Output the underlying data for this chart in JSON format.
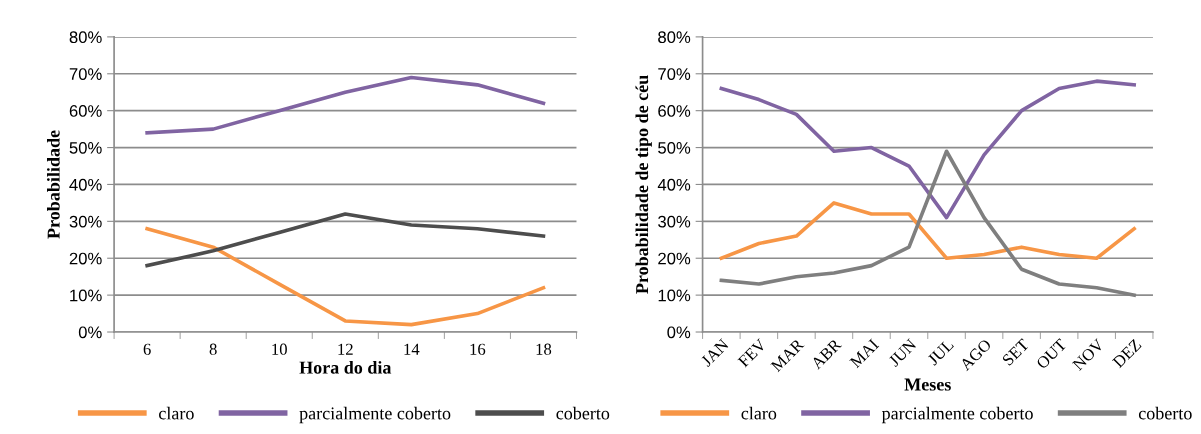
{
  "chart_data": [
    {
      "type": "line",
      "xlabel": "Hora do dia",
      "ylabel": "Probabilidade",
      "categories": [
        "6",
        "8",
        "10",
        "12",
        "14",
        "16",
        "18"
      ],
      "series": [
        {
          "name": "claro",
          "color": "#f79646",
          "values": [
            28,
            23,
            13,
            3,
            2,
            5,
            12
          ]
        },
        {
          "name": "parcialmente coberto",
          "color": "#8064a2",
          "values": [
            54,
            55,
            60,
            65,
            69,
            67,
            62
          ]
        },
        {
          "name": "coberto",
          "color": "#4d4d4d",
          "values": [
            18,
            22,
            27,
            32,
            29,
            28,
            26
          ]
        }
      ],
      "ylim": [
        0,
        80
      ],
      "yticks": [
        {
          "value": 0,
          "label": "0%"
        },
        {
          "value": 10,
          "label": "10%"
        },
        {
          "value": 20,
          "label": "20%"
        },
        {
          "value": 30,
          "label": "30%"
        },
        {
          "value": 40,
          "label": "40%"
        },
        {
          "value": 50,
          "label": "50%"
        },
        {
          "value": 60,
          "label": "60%"
        },
        {
          "value": 70,
          "label": "70%"
        },
        {
          "value": 80,
          "label": "80%"
        }
      ],
      "grid": "y",
      "legend": "bottom",
      "marker": "none",
      "line_style": "solid"
    },
    {
      "type": "line",
      "xlabel": "Meses",
      "ylabel": "Probabilidade de tipo de céu",
      "categories": [
        "JAN",
        "FEV",
        "MAR",
        "ABR",
        "MAI",
        "JUN",
        "JUL",
        "AGO",
        "SET",
        "OUT",
        "NOV",
        "DEZ"
      ],
      "series": [
        {
          "name": "claro",
          "color": "#f79646",
          "values": [
            20,
            24,
            26,
            35,
            32,
            32,
            20,
            21,
            23,
            21,
            20,
            28
          ]
        },
        {
          "name": "parcialmente coberto",
          "color": "#8064a2",
          "values": [
            66,
            63,
            59,
            49,
            50,
            45,
            31,
            48,
            60,
            66,
            68,
            67
          ]
        },
        {
          "name": "coberto",
          "color": "#7f7f7f",
          "values": [
            14,
            13,
            15,
            16,
            18,
            23,
            49,
            31,
            17,
            13,
            12,
            10
          ]
        }
      ],
      "ylim": [
        0,
        80
      ],
      "yticks": [
        {
          "value": 0,
          "label": "0%"
        },
        {
          "value": 10,
          "label": "10%"
        },
        {
          "value": 20,
          "label": "20%"
        },
        {
          "value": 30,
          "label": "30%"
        },
        {
          "value": 40,
          "label": "40%"
        },
        {
          "value": 50,
          "label": "50%"
        },
        {
          "value": 60,
          "label": "60%"
        },
        {
          "value": 70,
          "label": "70%"
        },
        {
          "value": 80,
          "label": "80%"
        }
      ],
      "grid": "y",
      "legend": "bottom",
      "marker": "none",
      "line_style": "solid"
    }
  ]
}
